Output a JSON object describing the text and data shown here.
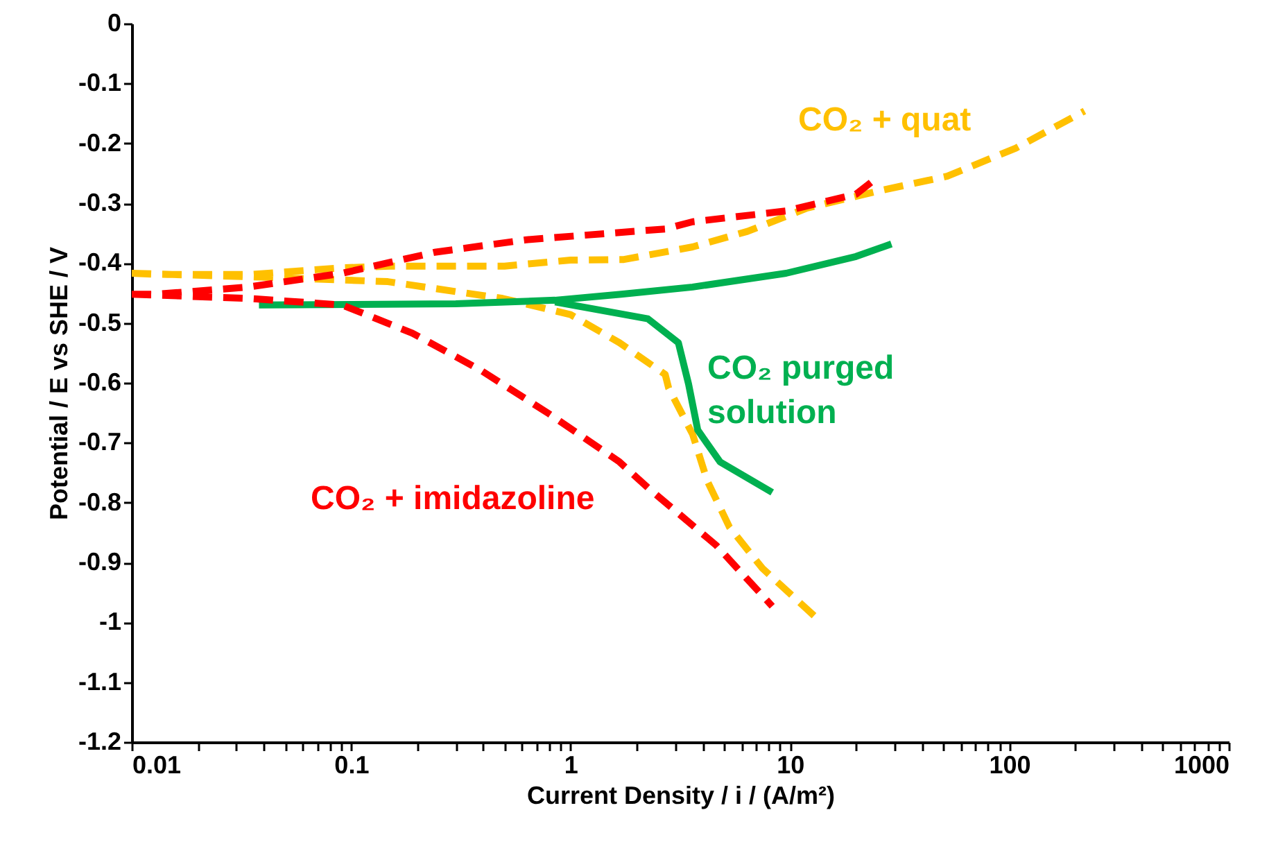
{
  "chart_data": {
    "type": "line",
    "xlabel": "Current Density  / i / (A/m²)",
    "ylabel": "Potential  / E vs SHE / V",
    "log": "x",
    "xlim": [
      0.01,
      1000
    ],
    "ylim": [
      -1.2,
      0
    ],
    "xticks": [
      0.01,
      {
        "value": 0.02,
        "label": null
      },
      {
        "value": 0.03,
        "label": null
      },
      {
        "value": 0.04,
        "label": null
      },
      {
        "value": 0.05,
        "label": null
      },
      {
        "value": 0.06,
        "label": null
      },
      {
        "value": 0.07,
        "label": null
      },
      {
        "value": 0.08,
        "label": null
      },
      {
        "value": 0.09,
        "label": null
      },
      0.1,
      {
        "value": 0.2,
        "label": null
      },
      {
        "value": 0.3,
        "label": null
      },
      {
        "value": 0.4,
        "label": null
      },
      {
        "value": 0.5,
        "label": null
      },
      {
        "value": 0.6,
        "label": null
      },
      {
        "value": 0.7,
        "label": null
      },
      {
        "value": 0.8,
        "label": null
      },
      {
        "value": 0.9,
        "label": null
      },
      1,
      {
        "value": 2,
        "label": null
      },
      {
        "value": 3,
        "label": null
      },
      {
        "value": 4,
        "label": null
      },
      {
        "value": 5,
        "label": null
      },
      {
        "value": 6,
        "label": null
      },
      {
        "value": 7,
        "label": null
      },
      {
        "value": 8,
        "label": null
      },
      {
        "value": 9,
        "label": null
      },
      10,
      {
        "value": 20,
        "label": null
      },
      {
        "value": 30,
        "label": null
      },
      {
        "value": 40,
        "label": null
      },
      {
        "value": 50,
        "label": null
      },
      {
        "value": 60,
        "label": null
      },
      {
        "value": 70,
        "label": null
      },
      {
        "value": 80,
        "label": null
      },
      {
        "value": 90,
        "label": null
      },
      100,
      {
        "value": 200,
        "label": null
      },
      {
        "value": 300,
        "label": null
      },
      {
        "value": 400,
        "label": null
      },
      {
        "value": 500,
        "label": null
      },
      {
        "value": 600,
        "label": null
      },
      {
        "value": 700,
        "label": null
      },
      {
        "value": 800,
        "label": null
      },
      {
        "value": 900,
        "label": null
      },
      1000
    ],
    "yticks": [
      0,
      -0.1,
      -0.2,
      -0.3,
      -0.4,
      -0.5,
      -0.6,
      -0.7,
      -0.8,
      -0.9,
      -1,
      -1.1,
      -1.2
    ],
    "series": [
      {
        "name": "CO₂ + quat",
        "color": "#ffc000",
        "line_style": "dashed",
        "x": [
          0.01,
          0.013,
          0.035,
          0.09,
          0.15,
          0.25,
          0.5,
          1,
          1.75,
          3.6,
          6.4,
          12,
          25,
          52,
          107,
          220,
          null,
          0.01,
          0.044,
          0.147,
          0.49,
          1.0,
          1.67,
          2.7,
          2.8,
          3.6,
          4.2,
          5.3,
          7.5,
          13.7
        ],
        "values": [
          -0.417,
          -0.419,
          -0.419,
          -0.408,
          -0.405,
          -0.405,
          -0.405,
          -0.395,
          -0.394,
          -0.373,
          -0.347,
          -0.308,
          -0.28,
          -0.255,
          -0.208,
          -0.146,
          null,
          -0.417,
          -0.424,
          -0.431,
          -0.459,
          -0.486,
          -0.533,
          -0.586,
          -0.609,
          -0.686,
          -0.764,
          -0.841,
          -0.91,
          -0.998
        ]
      },
      {
        "name": "CO₂ purged solution",
        "color": "#00b050",
        "line_style": "solid",
        "x": [
          0.038,
          0.3,
          0.85,
          1.7,
          3.6,
          9.6,
          20,
          29,
          null,
          0.85,
          2.25,
          3.1,
          3.45,
          3.8,
          4.8,
          8.3
        ],
        "values": [
          -0.47,
          -0.468,
          -0.462,
          -0.452,
          -0.44,
          -0.417,
          -0.389,
          -0.368,
          null,
          -0.465,
          -0.493,
          -0.533,
          -0.602,
          -0.679,
          -0.732,
          -0.783
        ]
      },
      {
        "name": "CO₂ + imidazoline",
        "color": "#ff0000",
        "line_style": "dashed",
        "x": [
          0.01,
          0.013,
          0.034,
          0.091,
          0.24,
          0.63,
          2.7,
          3.6,
          9.6,
          20,
          25,
          null,
          0.01,
          0.034,
          0.091,
          0.19,
          0.39,
          0.8,
          1.67,
          2.25,
          4.6,
          8.3
        ],
        "values": [
          -0.452,
          -0.452,
          -0.44,
          -0.417,
          -0.382,
          -0.361,
          -0.343,
          -0.331,
          -0.313,
          -0.285,
          -0.257,
          null,
          -0.452,
          -0.459,
          -0.47,
          -0.517,
          -0.579,
          -0.652,
          -0.732,
          -0.775,
          -0.871,
          -0.973
        ]
      }
    ]
  }
}
